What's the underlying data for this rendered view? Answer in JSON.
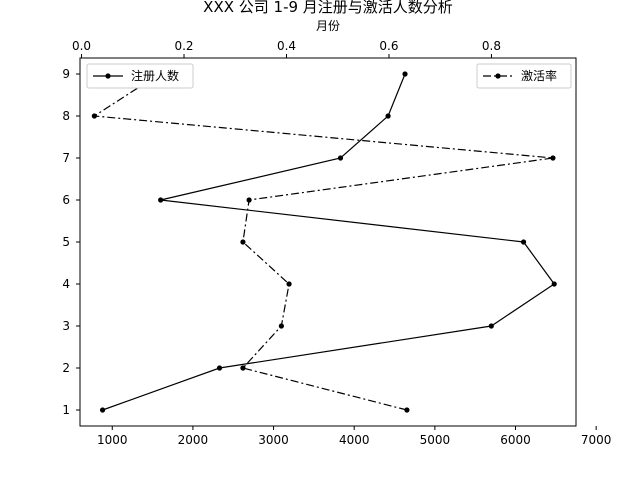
{
  "chart_data": {
    "type": "line",
    "title": "XXX 公司 1-9 月注册与激活人数分析",
    "top_xlabel": "月份",
    "y_categories": [
      "1",
      "2",
      "3",
      "4",
      "5",
      "6",
      "7",
      "8",
      "9"
    ],
    "bottom_axis": {
      "ticks": [
        1000,
        2000,
        3000,
        4000,
        5000,
        6000,
        7000
      ],
      "tick_labels": [
        "1000",
        "2000",
        "3000",
        "4000",
        "5000",
        "6000",
        "7000"
      ],
      "range": [
        600,
        6750
      ]
    },
    "top_axis": {
      "ticks": [
        0.0,
        0.2,
        0.4,
        0.6,
        0.8
      ],
      "tick_labels": [
        "0.0",
        "0.2",
        "0.4",
        "0.6",
        "0.8"
      ],
      "range": [
        -0.003,
        0.965
      ]
    },
    "series": [
      {
        "name": "注册人数",
        "axis": "bottom",
        "line_style": "solid",
        "color": "#000000",
        "values": [
          880,
          2330,
          5700,
          6480,
          6100,
          1600,
          3830,
          4420,
          4630
        ],
        "legend_position": "upper-left"
      },
      {
        "name": "激活率",
        "axis": "top",
        "line_style": "dashdot",
        "color": "#000000",
        "values": [
          0.635,
          0.315,
          0.39,
          0.405,
          0.315,
          0.327,
          0.92,
          0.025,
          0.152
        ],
        "legend_position": "upper-right"
      }
    ],
    "grid": false
  }
}
